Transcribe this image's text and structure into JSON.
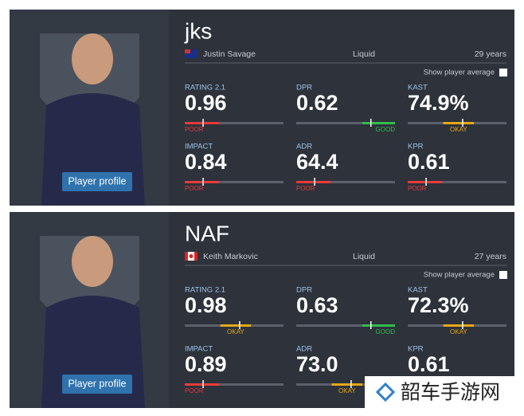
{
  "players": [
    {
      "nickname": "jks",
      "full_name": "Justin Savage",
      "team": "Liquid",
      "age": "29 years",
      "show_average": "Show player average",
      "button": "Player profile",
      "stats": [
        {
          "label": "RATING 2.1",
          "value": "0.96",
          "level": "POOR"
        },
        {
          "label": "DPR",
          "value": "0.62",
          "level": "GOOD"
        },
        {
          "label": "KAST",
          "value": "74.9%",
          "level": "OKAY"
        },
        {
          "label": "IMPACT",
          "value": "0.84",
          "level": "POOR"
        },
        {
          "label": "ADR",
          "value": "64.4",
          "level": "POOR"
        },
        {
          "label": "KPR",
          "value": "0.61",
          "level": "POOR"
        }
      ]
    },
    {
      "nickname": "NAF",
      "full_name": "Keith Markovic",
      "team": "Liquid",
      "age": "27 years",
      "show_average": "Show player average",
      "button": "Player profile",
      "stats": [
        {
          "label": "RATING 2.1",
          "value": "0.98",
          "level": "OKAY"
        },
        {
          "label": "DPR",
          "value": "0.63",
          "level": "GOOD"
        },
        {
          "label": "KAST",
          "value": "72.3%",
          "level": "OKAY"
        },
        {
          "label": "IMPACT",
          "value": "0.89",
          "level": "POOR"
        },
        {
          "label": "ADR",
          "value": "73.0",
          "level": "OKAY"
        },
        {
          "label": "KPR",
          "value": "0.61"
        }
      ]
    }
  ],
  "watermark": "韶车手游网"
}
